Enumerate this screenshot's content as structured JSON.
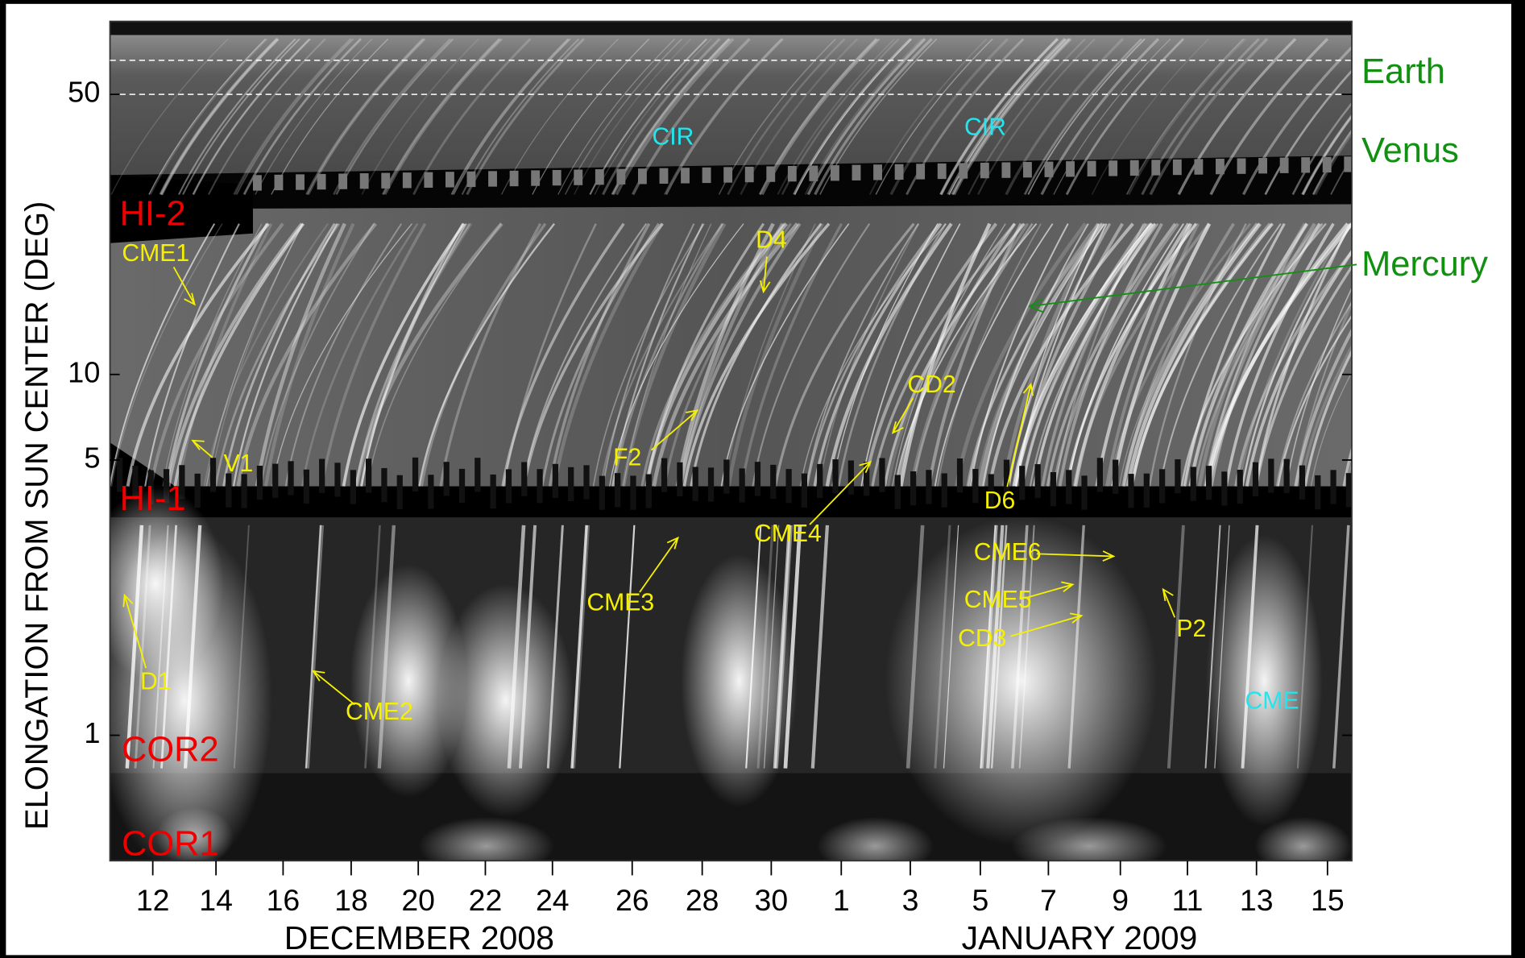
{
  "axes": {
    "y_label": "ELONGATION FROM SUN CENTER (DEG)",
    "y_ticks": [
      "50",
      "10",
      "5",
      "1"
    ],
    "x_ticks": [
      "12",
      "14",
      "16",
      "18",
      "20",
      "22",
      "24",
      "26",
      "28",
      "30",
      "1",
      "3",
      "5",
      "7",
      "9",
      "11",
      "13",
      "15"
    ],
    "x_months": [
      "DECEMBER 2008",
      "JANUARY 2009"
    ]
  },
  "instruments": [
    "HI-2",
    "HI-1",
    "COR2",
    "COR1"
  ],
  "planets": [
    "Earth",
    "Venus",
    "Mercury"
  ],
  "annotations": [
    "CIR",
    "CIR",
    "CME",
    "CME1",
    "D4",
    "V1",
    "F2",
    "CD2",
    "D6",
    "CME4",
    "CME3",
    "CME6",
    "CME5",
    "CD3",
    "P2",
    "D1",
    "CME2"
  ]
}
